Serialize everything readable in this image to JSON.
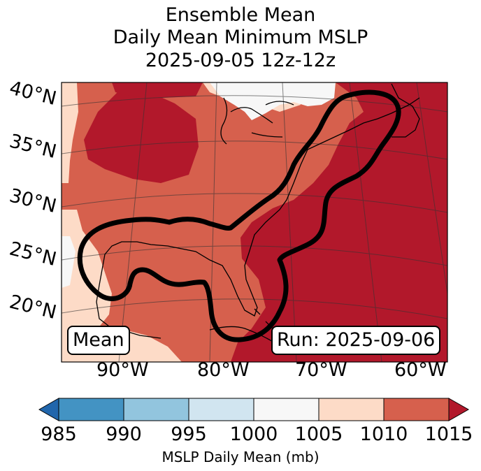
{
  "title": {
    "line1": "Ensemble Mean",
    "line2": "Daily Mean Minimum MSLP",
    "line3": "2025-09-05 12z-12z"
  },
  "map": {
    "lat_labels": [
      "40°N",
      "35°N",
      "30°N",
      "25°N",
      "20°N"
    ],
    "lon_labels": [
      "90°W",
      "80°W",
      "70°W",
      "60°W"
    ],
    "mean_label": "Mean",
    "run_label": "Run: 2025-09-06",
    "colors": {
      "c1015": "#b2182b",
      "c1010": "#d6604d",
      "c1005": "#fddbc7",
      "c1000": "#f7f7f7",
      "contour": "#000000",
      "coast": "#000000"
    }
  },
  "colorbar": {
    "label": "MSLP Daily Mean (mb)",
    "ticks": [
      "985",
      "990",
      "995",
      "1000",
      "1005",
      "1010",
      "1015"
    ],
    "colors": [
      "#2166ac",
      "#4393c3",
      "#92c5de",
      "#d1e5f0",
      "#f7f7f7",
      "#fddbc7",
      "#d6604d",
      "#b2182b"
    ]
  }
}
